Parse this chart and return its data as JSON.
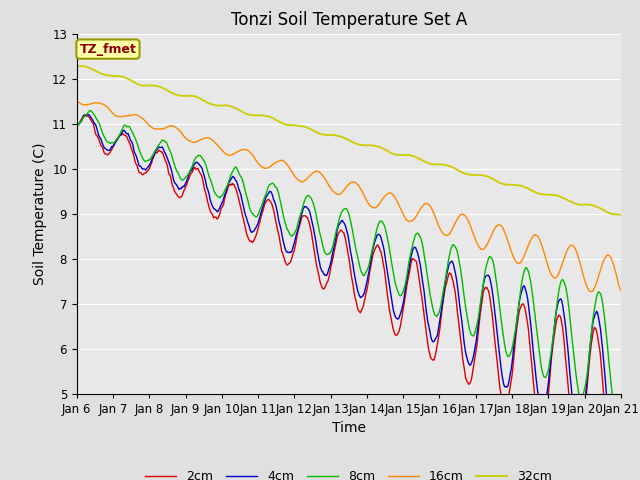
{
  "title": "Tonzi Soil Temperature Set A",
  "xlabel": "Time",
  "ylabel": "Soil Temperature (C)",
  "legend_label": "TZ_fmet",
  "ylim": [
    5.0,
    13.0
  ],
  "yticks": [
    5.0,
    6.0,
    7.0,
    8.0,
    9.0,
    10.0,
    11.0,
    12.0,
    13.0
  ],
  "xtick_labels": [
    "Jan 6",
    "Jan 7",
    "Jan 8",
    "Jan 9",
    "Jan 10",
    "Jan 11",
    "Jan 12",
    "Jan 13",
    "Jan 14",
    "Jan 15",
    "Jan 16",
    "Jan 17",
    "Jan 18",
    "Jan 19",
    "Jan 20",
    "Jan 21"
  ],
  "series_labels": [
    "2cm",
    "4cm",
    "8cm",
    "16cm",
    "32cm"
  ],
  "series_colors": [
    "#dd0000",
    "#0000cc",
    "#00bb00",
    "#ff8800",
    "#cccc00"
  ],
  "fig_bg": "#e0e0e0",
  "plot_bg": "#e8e8e8",
  "n_points": 720,
  "title_fontsize": 12,
  "axis_label_fontsize": 10,
  "tick_fontsize": 8.5
}
